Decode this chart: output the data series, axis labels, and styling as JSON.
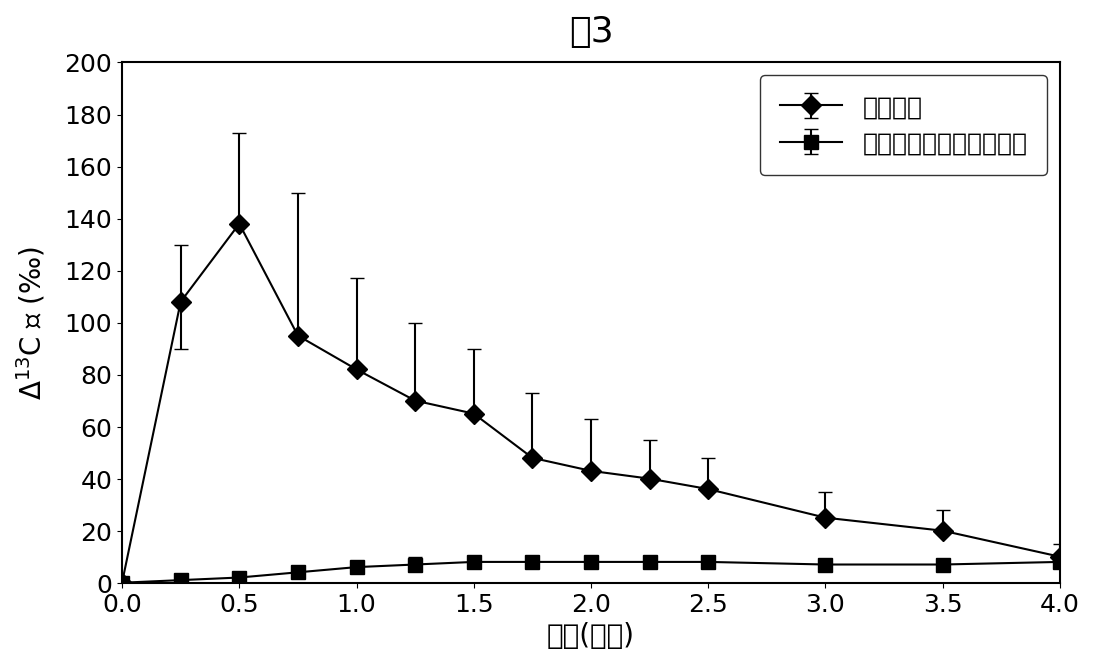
{
  "title": "图3",
  "xlabel": "时间(小时)",
  "ylim": [
    0,
    200
  ],
  "xlim": [
    0,
    4
  ],
  "xticks": [
    0,
    0.5,
    1,
    1.5,
    2,
    2.5,
    3,
    3.5,
    4
  ],
  "yticks": [
    0,
    20,
    40,
    60,
    80,
    100,
    120,
    140,
    160,
    180,
    200
  ],
  "series1_label": "正常动脉",
  "series1_x": [
    0,
    0.25,
    0.5,
    0.75,
    1.0,
    1.25,
    1.5,
    1.75,
    2.0,
    2.25,
    2.5,
    3.0,
    3.5,
    4.0
  ],
  "series1_y": [
    0,
    108,
    138,
    95,
    82,
    70,
    65,
    48,
    43,
    40,
    36,
    25,
    20,
    10
  ],
  "series1_yerr_upper": [
    0,
    22,
    35,
    55,
    35,
    30,
    25,
    25,
    20,
    15,
    12,
    10,
    8,
    5
  ],
  "series1_yerr_lower": [
    0,
    18,
    0,
    0,
    0,
    0,
    0,
    0,
    0,
    0,
    0,
    0,
    0,
    0
  ],
  "series1_color": "#000000",
  "series1_marker": "D",
  "series1_markersize": 10,
  "series2_label": "尿嘧啶代谢紊乱模式动物",
  "series2_x": [
    0,
    0.25,
    0.5,
    0.75,
    1.0,
    1.25,
    1.5,
    1.75,
    2.0,
    2.25,
    2.5,
    3.0,
    3.5,
    4.0
  ],
  "series2_y": [
    0,
    1,
    2,
    4,
    6,
    7,
    8,
    8,
    8,
    8,
    8,
    7,
    7,
    8
  ],
  "series2_yerr_upper": [
    0,
    2,
    2,
    2,
    2,
    3,
    2,
    2,
    2,
    2,
    2,
    2,
    2,
    2
  ],
  "series2_yerr_lower": [
    0,
    1,
    1,
    1,
    1,
    2,
    1,
    1,
    1,
    1,
    1,
    1,
    1,
    1
  ],
  "series2_color": "#000000",
  "series2_marker": "s",
  "series2_markersize": 10,
  "background_color": "#ffffff",
  "title_fontsize": 26,
  "label_fontsize": 20,
  "tick_fontsize": 18,
  "legend_fontsize": 18
}
